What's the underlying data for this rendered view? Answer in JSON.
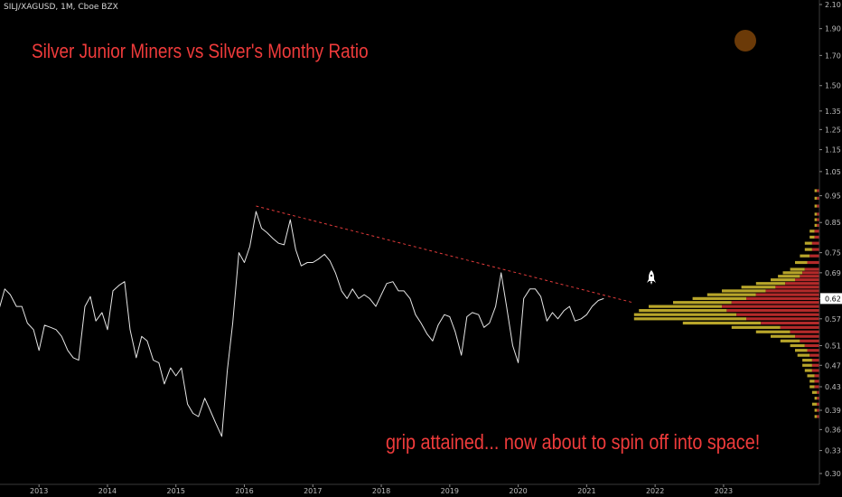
{
  "header": {
    "ticker": "SILJ/XAGUSD, 1M, Cboe BZX"
  },
  "annotations": {
    "title": "Silver Junior Miners vs Silver's Monthy Ratio",
    "note": "grip attained... now about to spin off into space!"
  },
  "colors": {
    "background": "#000000",
    "line": "#e6e6e6",
    "trendline": "#e23b3b",
    "text_red": "#ef3b3b",
    "vp_up": "#b8a52a",
    "vp_down": "#b32a2a",
    "moon": "#6b3a08",
    "rocket": "#ffffff"
  },
  "icons": [
    "moon-icon",
    "rocket-icon"
  ],
  "chart_data": {
    "type": "line",
    "y_scale": "log",
    "y_ticks": [
      2.1,
      1.9,
      1.7,
      1.5,
      1.35,
      1.25,
      1.15,
      1.05,
      0.95,
      0.85,
      0.75,
      0.69,
      0.62,
      0.57,
      0.51,
      0.47,
      0.43,
      0.39,
      0.36,
      0.33,
      0.3
    ],
    "y_ticks_labels": [
      "2.10",
      "1.90",
      "1.70",
      "1.50",
      "1.35",
      "1.25",
      "1.15",
      "1.05",
      "0.95",
      "0.85",
      "0.75",
      "0.69",
      "0.62",
      "0.57",
      "0.51",
      "0.47",
      "0.43",
      "0.39",
      "0.36",
      "0.33",
      "0.30"
    ],
    "last_value_label": "0.62",
    "ylim": [
      0.295,
      2.15
    ],
    "x_labels": [
      "2013",
      "2014",
      "2015",
      "2016",
      "2017",
      "2018",
      "2019",
      "2020",
      "2021",
      "2022",
      "2023"
    ],
    "x_range": [
      2012.43,
      2024.4
    ],
    "series": [
      {
        "x": [
          2012.42,
          2012.5,
          2012.58,
          2012.67,
          2012.75,
          2012.83,
          2012.92,
          2013.0,
          2013.08,
          2013.17,
          2013.25,
          2013.33,
          2013.42,
          2013.5,
          2013.58,
          2013.67,
          2013.75,
          2013.83,
          2013.92,
          2014.0,
          2014.08,
          2014.17,
          2014.25,
          2014.33,
          2014.42,
          2014.5,
          2014.58,
          2014.67,
          2014.75,
          2014.83,
          2014.92,
          2015.0,
          2015.08,
          2015.17,
          2015.25,
          2015.33,
          2015.42,
          2015.5,
          2015.58,
          2015.67,
          2015.75,
          2015.83,
          2015.92,
          2016.0,
          2016.08,
          2016.17,
          2016.25,
          2016.33,
          2016.42,
          2016.5,
          2016.58,
          2016.67,
          2016.75,
          2016.83,
          2016.92,
          2017.0,
          2017.08,
          2017.17,
          2017.25,
          2017.33,
          2017.42,
          2017.5,
          2017.58,
          2017.67,
          2017.75,
          2017.83,
          2017.92,
          2018.0,
          2018.08,
          2018.17,
          2018.25,
          2018.33,
          2018.42,
          2018.5,
          2018.58,
          2018.67,
          2018.75,
          2018.83,
          2018.92,
          2019.0,
          2019.08,
          2019.17,
          2019.25,
          2019.33,
          2019.42,
          2019.5,
          2019.58,
          2019.67,
          2019.75,
          2019.83,
          2019.92,
          2020.0,
          2020.08,
          2020.17,
          2020.25,
          2020.33,
          2020.42,
          2020.5,
          2020.58,
          2020.67,
          2020.75,
          2020.83,
          2020.92,
          2021.0,
          2021.08,
          2021.17,
          2021.25
        ],
        "values": [
          0.595,
          0.645,
          0.63,
          0.6,
          0.6,
          0.56,
          0.545,
          0.5,
          0.555,
          0.55,
          0.545,
          0.53,
          0.5,
          0.485,
          0.48,
          0.6,
          0.625,
          0.565,
          0.585,
          0.545,
          0.64,
          0.655,
          0.665,
          0.545,
          0.485,
          0.53,
          0.52,
          0.48,
          0.475,
          0.435,
          0.465,
          0.45,
          0.465,
          0.4,
          0.385,
          0.38,
          0.41,
          0.39,
          0.37,
          0.35,
          0.46,
          0.56,
          0.75,
          0.72,
          0.77,
          0.89,
          0.83,
          0.815,
          0.795,
          0.78,
          0.775,
          0.86,
          0.76,
          0.71,
          0.72,
          0.72,
          0.73,
          0.745,
          0.725,
          0.69,
          0.64,
          0.62,
          0.645,
          0.62,
          0.63,
          0.62,
          0.6,
          0.63,
          0.66,
          0.665,
          0.64,
          0.64,
          0.62,
          0.58,
          0.56,
          0.535,
          0.52,
          0.555,
          0.58,
          0.575,
          0.54,
          0.49,
          0.575,
          0.585,
          0.58,
          0.55,
          0.56,
          0.6,
          0.69,
          0.6,
          0.51,
          0.475,
          0.62,
          0.645,
          0.645,
          0.625,
          0.565,
          0.585,
          0.57,
          0.59,
          0.6,
          0.565,
          0.57,
          0.58,
          0.6,
          0.615,
          0.62
        ]
      }
    ],
    "trendline": {
      "start": [
        2016.17,
        0.91
      ],
      "end": [
        2021.67,
        0.61
      ]
    },
    "volume_profile": {
      "price": [
        0.38,
        0.39,
        0.4,
        0.41,
        0.42,
        0.43,
        0.44,
        0.45,
        0.46,
        0.47,
        0.48,
        0.49,
        0.5,
        0.51,
        0.52,
        0.53,
        0.54,
        0.55,
        0.56,
        0.57,
        0.58,
        0.59,
        0.6,
        0.61,
        0.62,
        0.63,
        0.64,
        0.65,
        0.66,
        0.67,
        0.68,
        0.69,
        0.7,
        0.72,
        0.74,
        0.76,
        0.78,
        0.8,
        0.82,
        0.84,
        0.86,
        0.88,
        0.91,
        0.94,
        0.97
      ],
      "up": [
        1,
        1,
        2,
        1,
        2,
        2,
        2,
        3,
        3,
        4,
        4,
        5,
        5,
        6,
        8,
        10,
        14,
        20,
        32,
        46,
        42,
        36,
        30,
        24,
        22,
        20,
        18,
        14,
        12,
        10,
        9,
        8,
        6,
        5,
        4,
        3,
        3,
        2,
        2,
        1,
        1,
        1,
        1,
        1,
        1
      ],
      "down": [
        1,
        1,
        1,
        1,
        1,
        2,
        2,
        2,
        3,
        3,
        3,
        4,
        5,
        6,
        8,
        10,
        12,
        16,
        24,
        30,
        34,
        38,
        40,
        36,
        30,
        26,
        22,
        18,
        14,
        10,
        8,
        7,
        6,
        5,
        4,
        3,
        3,
        2,
        2,
        1,
        1,
        1,
        1,
        1,
        1
      ]
    }
  }
}
